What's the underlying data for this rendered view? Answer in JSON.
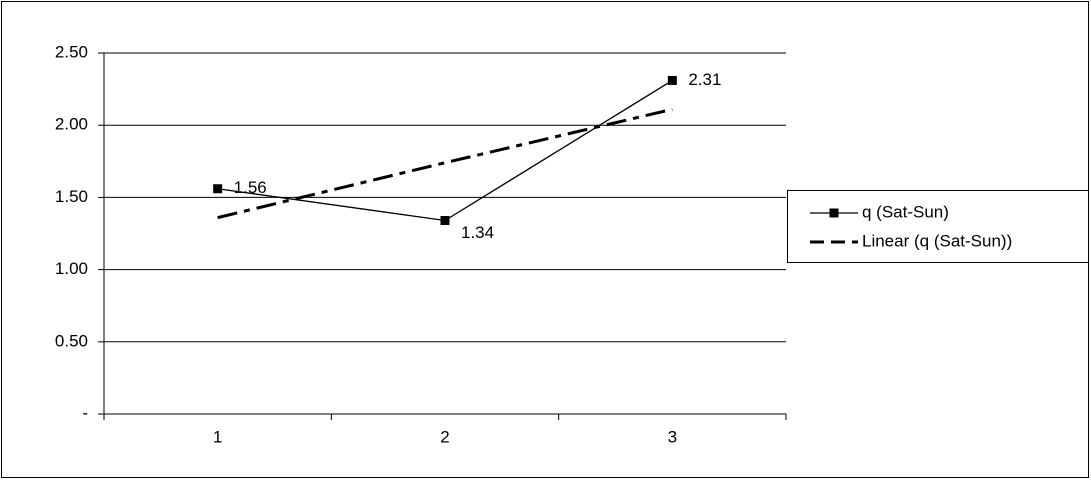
{
  "chart_data": {
    "type": "line",
    "categories": [
      "1",
      "2",
      "3"
    ],
    "series": [
      {
        "name": "q (Sat-Sun)",
        "color": "#000000",
        "values": [
          1.56,
          1.34,
          2.31
        ],
        "marker": "square",
        "data_labels": true
      },
      {
        "name": "Linear (q (Sat-Sun))",
        "color": "#000000",
        "values": [
          1.36,
          1.74,
          2.11
        ],
        "dashed": true
      }
    ],
    "ylim": [
      0,
      2.5
    ],
    "yticks": [
      {
        "value": 0,
        "label": "-"
      },
      {
        "value": 0.5,
        "label": "0.50"
      },
      {
        "value": 1,
        "label": "1.00"
      },
      {
        "value": 1.5,
        "label": "1.50"
      },
      {
        "value": 2,
        "label": "2.00"
      },
      {
        "value": 2.5,
        "label": "2.50"
      }
    ],
    "grid": true,
    "legend": "right"
  }
}
